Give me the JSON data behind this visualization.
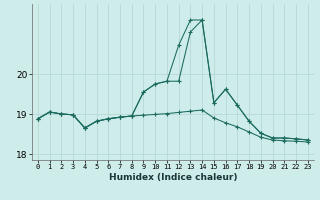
{
  "xlabel": "Humidex (Indice chaleur)",
  "background_color": "#ceecea",
  "line_color": "#1a6b5e",
  "grid_color": "#b8d8d5",
  "x_values": [
    0,
    1,
    2,
    3,
    4,
    5,
    6,
    7,
    8,
    9,
    10,
    11,
    12,
    13,
    14,
    15,
    16,
    17,
    18,
    19,
    20,
    21,
    22,
    23
  ],
  "series1": [
    18.88,
    19.05,
    19.0,
    18.98,
    18.65,
    18.82,
    18.88,
    18.92,
    18.95,
    19.55,
    19.75,
    19.82,
    20.72,
    21.35,
    21.35,
    19.28,
    19.62,
    19.22,
    18.82,
    18.52,
    18.4,
    18.4,
    18.38,
    18.35
  ],
  "series2": [
    18.88,
    19.05,
    19.0,
    18.98,
    18.65,
    18.82,
    18.88,
    18.92,
    18.95,
    19.55,
    19.75,
    19.82,
    19.82,
    21.05,
    21.35,
    19.28,
    19.62,
    19.22,
    18.82,
    18.52,
    18.4,
    18.4,
    18.38,
    18.35
  ],
  "series3": [
    18.88,
    19.05,
    19.0,
    18.98,
    18.65,
    18.82,
    18.88,
    18.92,
    18.95,
    18.97,
    18.99,
    19.01,
    19.04,
    19.07,
    19.1,
    18.9,
    18.78,
    18.68,
    18.55,
    18.42,
    18.35,
    18.33,
    18.32,
    18.3
  ],
  "ylim": [
    17.85,
    21.75
  ],
  "yticks": [
    18,
    19,
    20
  ],
  "xticks": [
    0,
    1,
    2,
    3,
    4,
    5,
    6,
    7,
    8,
    9,
    10,
    11,
    12,
    13,
    14,
    15,
    16,
    17,
    18,
    19,
    20,
    21,
    22,
    23
  ]
}
